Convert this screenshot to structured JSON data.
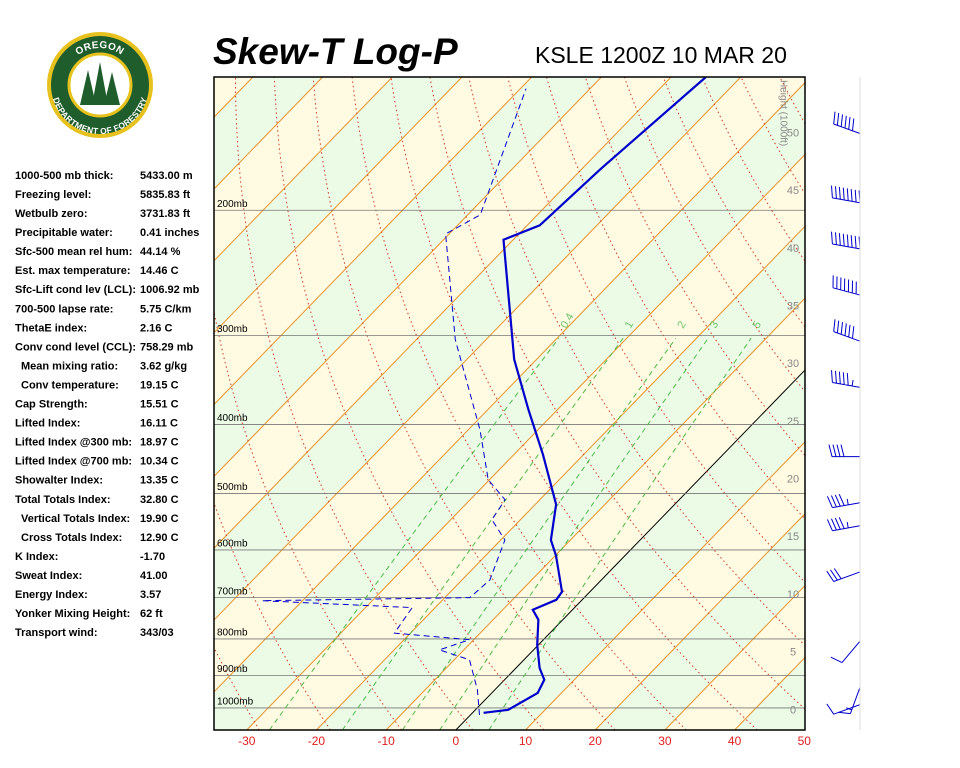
{
  "logo": {
    "top": "OREGON",
    "bottom": "DEPARTMENT OF FORESTRY"
  },
  "indices": [
    [
      "1000-500 mb thick:",
      "5433.00 m"
    ],
    [
      "Freezing level:",
      "5835.83 ft"
    ],
    [
      "Wetbulb zero:",
      "3731.83 ft"
    ],
    [
      "Precipitable water:",
      "0.41 inches"
    ],
    [
      "Sfc-500 mean rel hum:",
      "44.14 %"
    ],
    [
      "Est. max temperature:",
      "14.46 C"
    ],
    [
      "Sfc-Lift cond lev (LCL):",
      "1006.92 mb"
    ],
    [
      "700-500 lapse rate:",
      "5.75 C/km"
    ],
    [
      "ThetaE index:",
      "2.16 C"
    ],
    [
      "Conv cond level (CCL):",
      "758.29 mb"
    ],
    [
      "Mean mixing ratio:",
      "3.62 g/kg"
    ],
    [
      "Conv temperature:",
      "19.15 C"
    ],
    [
      "Cap Strength:",
      "15.51 C"
    ],
    [
      "Lifted Index:",
      "16.11 C"
    ],
    [
      "Lifted Index @300 mb:",
      "18.97 C"
    ],
    [
      "Lifted Index @700 mb:",
      "10.34 C"
    ],
    [
      "Showalter Index:",
      "13.35 C"
    ],
    [
      "Total Totals Index:",
      "32.80 C"
    ],
    [
      "Vertical Totals Index:",
      "19.90 C"
    ],
    [
      "Cross Totals Index:",
      "12.90 C"
    ],
    [
      "K Index:",
      "-1.70"
    ],
    [
      "Sweat Index:",
      "41.00"
    ],
    [
      "Energy Index:",
      "3.57"
    ],
    [
      "Yonker Mixing Height:",
      "62 ft"
    ],
    [
      "Transport wind:",
      "343/03"
    ]
  ],
  "chart_data": {
    "type": "skewt",
    "title": "Skew-T Log-P",
    "subtitle": "KSLE 1200Z 10 MAR 20",
    "xlim": [
      -34.7,
      50.1
    ],
    "xticks": [
      -30,
      -20,
      -10,
      0,
      10,
      20,
      30,
      40,
      50
    ],
    "ylim": [
      1074,
      130
    ],
    "y_log": true,
    "yticks": [
      {
        "value": 1000,
        "label": "1000mb"
      },
      {
        "value": 900,
        "label": "900mb"
      },
      {
        "value": 800,
        "label": "800mb"
      },
      {
        "value": 700,
        "label": "700mb"
      },
      {
        "value": 600,
        "label": "600mb"
      },
      {
        "value": 500,
        "label": "500mb"
      },
      {
        "value": 400,
        "label": "400mb"
      },
      {
        "value": 300,
        "label": "300mb"
      },
      {
        "value": 200,
        "label": "200mb"
      }
    ],
    "y2label": "Height (1000ft)",
    "y2lim": [
      -1.7,
      54.9
    ],
    "y2ticks": [
      0,
      5,
      10,
      15,
      20,
      25,
      30,
      35,
      40,
      45,
      50
    ],
    "mixing_ratio_labels": [
      {
        "value": 0.4,
        "label": "0.4"
      },
      1,
      2,
      3,
      5
    ],
    "series": [
      {
        "color": "#0000cc",
        "style": "solid",
        "pressure": [
          1016,
          1006,
          953,
          913,
          879,
          815,
          752,
          728,
          705,
          687,
          611,
          581,
          518,
          441,
          381,
          324,
          220,
          210,
          175,
          130
        ],
        "values": [
          1.6,
          4.7,
          6.6,
          5.7,
          3.4,
          -0.2,
          -3.5,
          -5.7,
          -3.7,
          -4.0,
          -9.9,
          -12.8,
          -17.0,
          -25.8,
          -34.2,
          -43.2,
          -61.4,
          -58.2,
          -57.3,
          -55.0
        ]
      },
      {
        "color": "#0000cc",
        "style": "dashed",
        "pressure": [
          1023,
          943,
          856,
          829,
          802,
          785,
          723,
          707,
          700,
          661,
          581,
          544,
          510,
          478,
          407,
          304,
          216,
          203,
          135
        ],
        "values": [
          1.3,
          -2.5,
          -7.8,
          -13.5,
          -10.6,
          -22.3,
          -23.3,
          -45.8,
          -16.4,
          -16.0,
          -19.4,
          -24.1,
          -25.0,
          -30.2,
          -38.3,
          -54.4,
          -70.5,
          -68.2,
          -79.2
        ]
      }
    ],
    "winds": {
      "height": [
        0.5,
        2,
        6,
        12,
        16,
        18,
        22,
        28,
        32,
        36,
        40,
        44,
        50
      ],
      "direction": [
        250,
        200,
        220,
        250,
        260,
        260,
        270,
        280,
        290,
        285,
        280,
        280,
        290
      ],
      "speed": [
        10,
        15,
        10,
        30,
        45,
        45,
        40,
        55,
        60,
        70,
        80,
        80,
        60
      ]
    }
  }
}
